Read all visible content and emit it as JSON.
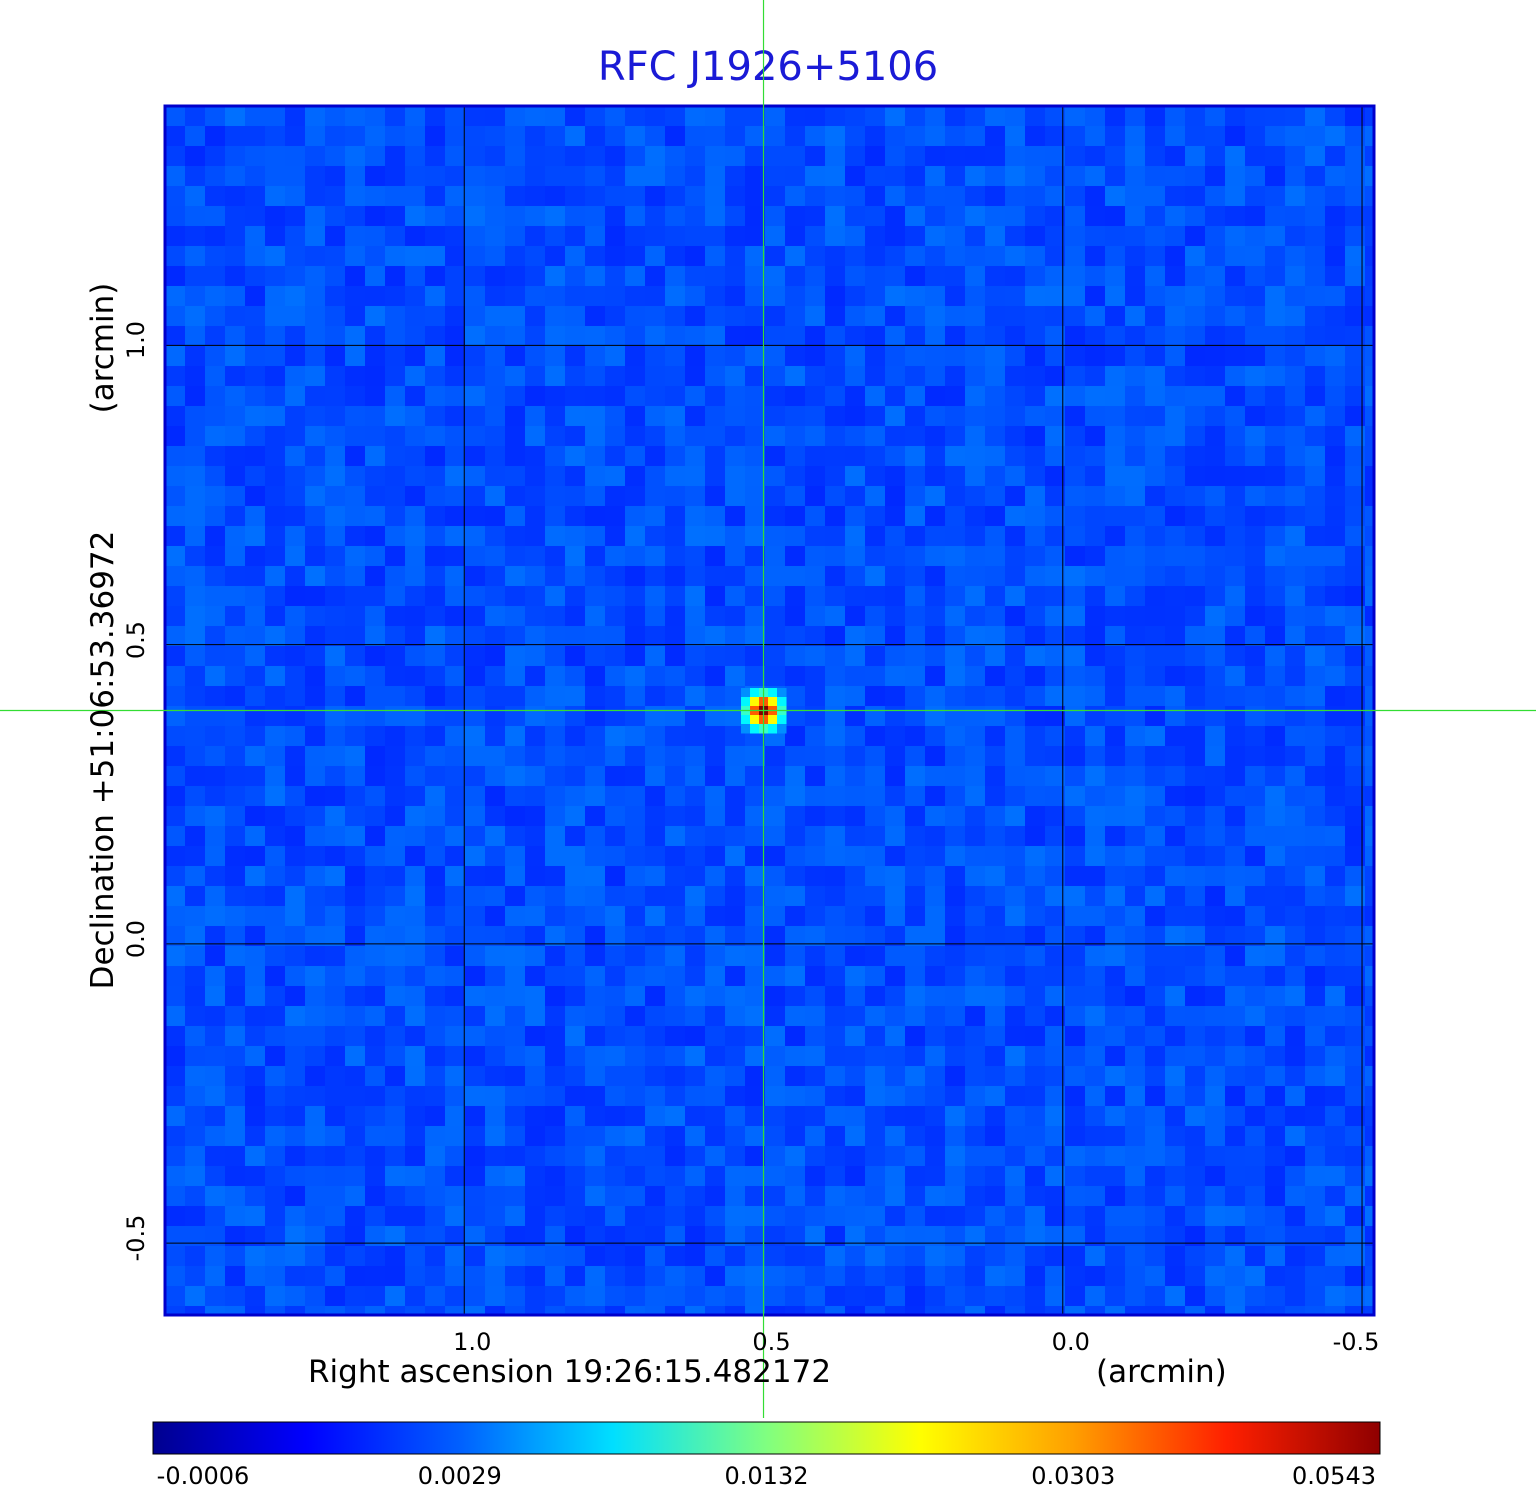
{
  "chart_data": {
    "type": "heatmap",
    "title": "RFC J1926+5106",
    "xlabel": "Right ascension  19:26:15.482172",
    "xlabel_unit": "(arcmin)",
    "ylabel": "Declination  +51:06:53.36972",
    "ylabel_unit": "(arcmin)",
    "x_ticks": [
      {
        "value": 1.0,
        "label": "1.0"
      },
      {
        "value": 0.5,
        "label": "0.5"
      },
      {
        "value": 0.0,
        "label": "0.0"
      },
      {
        "value": -0.5,
        "label": "-0.5"
      }
    ],
    "y_ticks": [
      {
        "value": 1.0,
        "label": "1.0"
      },
      {
        "value": 0.5,
        "label": "0.5"
      },
      {
        "value": 0.0,
        "label": "0.0"
      },
      {
        "value": -0.5,
        "label": "-0.5"
      }
    ],
    "xlim": [
      1.5,
      -0.52
    ],
    "ylim": [
      -0.62,
      1.4
    ],
    "grid": true,
    "crosshair": {
      "x": 0.5,
      "y": 0.39
    },
    "source": {
      "x": 0.5,
      "y": 0.39,
      "peak": 0.0543
    },
    "colormap": "jet",
    "colorbar": {
      "position": "bottom",
      "ticks": [
        "-0.0006",
        "0.0029",
        "0.0132",
        "0.0303",
        "0.0543"
      ],
      "range": [
        -0.0006,
        0.0543
      ]
    },
    "colors": {
      "title": "#1a1ad6",
      "frame": "#0000cc",
      "background_field": "#0c3cf0",
      "grid": "#000000",
      "crosshair": "#33dd33"
    }
  }
}
